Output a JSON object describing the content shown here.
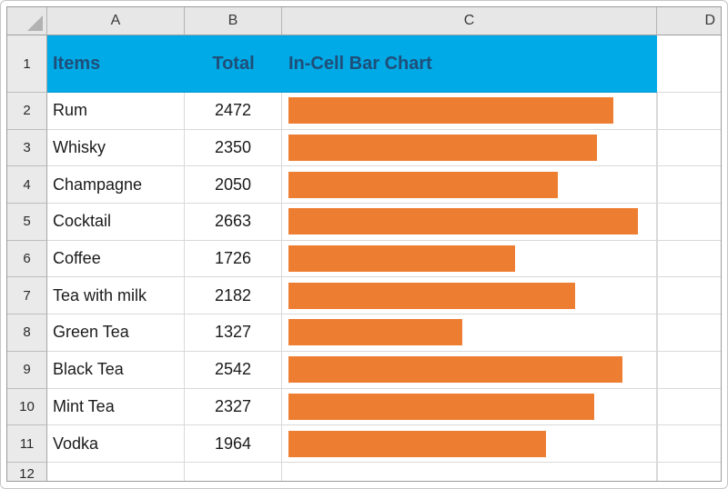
{
  "columns": [
    "A",
    "B",
    "C",
    "D"
  ],
  "header_row": {
    "num": "1",
    "items_label": "Items",
    "total_label": "Total",
    "chart_label": "In-Cell Bar Chart"
  },
  "rows": [
    {
      "num": "2",
      "item": "Rum",
      "total": "2472"
    },
    {
      "num": "3",
      "item": "Whisky",
      "total": "2350"
    },
    {
      "num": "4",
      "item": "Champagne",
      "total": "2050"
    },
    {
      "num": "5",
      "item": "Cocktail",
      "total": "2663"
    },
    {
      "num": "6",
      "item": "Coffee",
      "total": "1726"
    },
    {
      "num": "7",
      "item": "Tea with milk",
      "total": "2182"
    },
    {
      "num": "8",
      "item": "Green Tea",
      "total": "1327"
    },
    {
      "num": "9",
      "item": "Black Tea",
      "total": "2542"
    },
    {
      "num": "10",
      "item": "Mint Tea",
      "total": "2327"
    },
    {
      "num": "11",
      "item": "Vodka",
      "total": "1964"
    }
  ],
  "partial_row": {
    "num": "12"
  },
  "colors": {
    "header_bg": "#00aae6",
    "header_text": "#1F4E79",
    "bar_fill": "#ED7D31"
  },
  "chart_data": {
    "type": "bar",
    "orientation": "horizontal",
    "title": "In-Cell Bar Chart",
    "categories": [
      "Rum",
      "Whisky",
      "Champagne",
      "Cocktail",
      "Coffee",
      "Tea with milk",
      "Green Tea",
      "Black Tea",
      "Mint Tea",
      "Vodka"
    ],
    "values": [
      2472,
      2350,
      2050,
      2663,
      1726,
      2182,
      1327,
      2542,
      2327,
      1964
    ],
    "xlim": [
      0,
      2800
    ],
    "grid": false,
    "legend": "none"
  }
}
